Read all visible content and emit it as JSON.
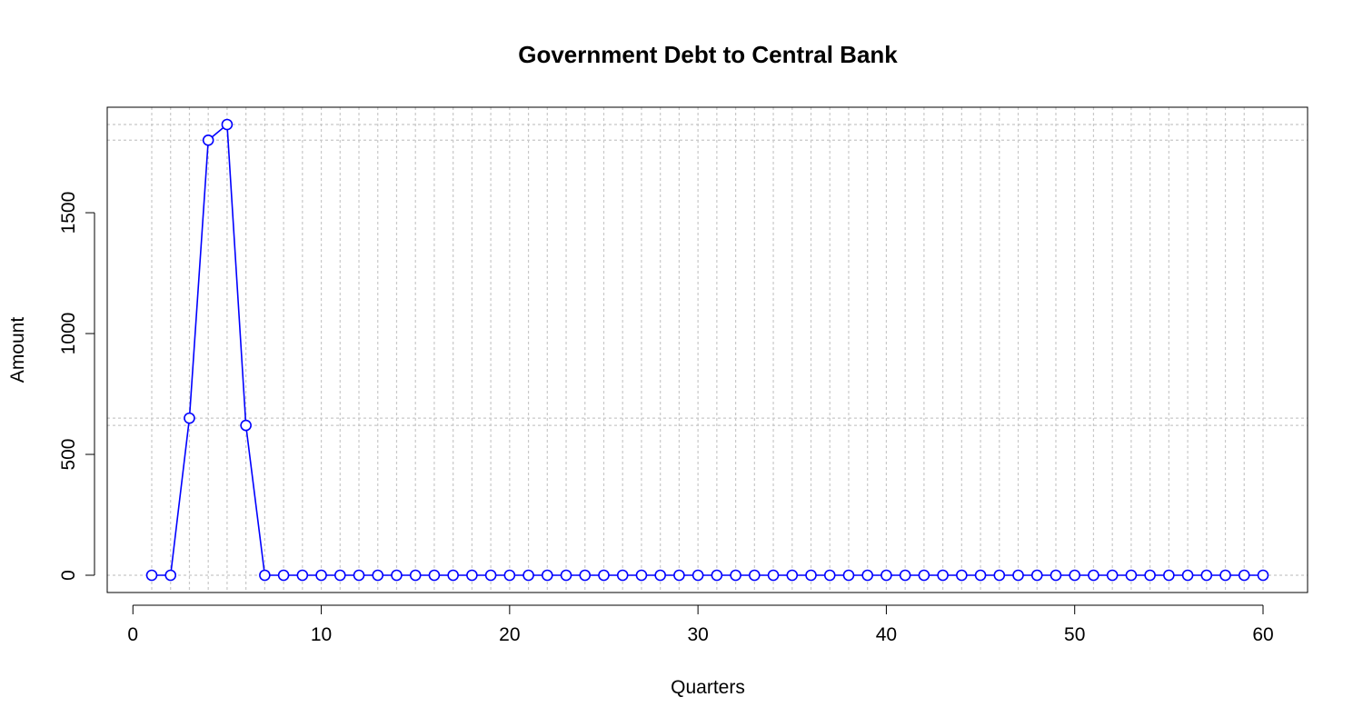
{
  "chart_data": {
    "type": "line",
    "title": "Government Debt to Central Bank",
    "xlabel": "Quarters",
    "ylabel": "Amount",
    "xlim": [
      1,
      60
    ],
    "ylim": [
      0,
      1865
    ],
    "x_ticks": [
      0,
      10,
      20,
      30,
      40,
      50,
      60
    ],
    "y_ticks": [
      0,
      500,
      1000,
      1500
    ],
    "x_tick_labels": [
      "0",
      "10",
      "20",
      "30",
      "40",
      "50",
      "60"
    ],
    "y_tick_labels": [
      "0",
      "500",
      "1000",
      "1500"
    ],
    "grid": true,
    "marker": "open-circle",
    "line_color": "#0000ff",
    "grid_color": "#c8c8c8",
    "y_reference_lines": [
      0,
      620,
      650,
      1800,
      1865
    ],
    "x": [
      1,
      2,
      3,
      4,
      5,
      6,
      7,
      8,
      9,
      10,
      11,
      12,
      13,
      14,
      15,
      16,
      17,
      18,
      19,
      20,
      21,
      22,
      23,
      24,
      25,
      26,
      27,
      28,
      29,
      30,
      31,
      32,
      33,
      34,
      35,
      36,
      37,
      38,
      39,
      40,
      41,
      42,
      43,
      44,
      45,
      46,
      47,
      48,
      49,
      50,
      51,
      52,
      53,
      54,
      55,
      56,
      57,
      58,
      59,
      60
    ],
    "y": [
      0,
      0,
      650,
      1800,
      1865,
      620,
      0,
      0,
      0,
      0,
      0,
      0,
      0,
      0,
      0,
      0,
      0,
      0,
      0,
      0,
      0,
      0,
      0,
      0,
      0,
      0,
      0,
      0,
      0,
      0,
      0,
      0,
      0,
      0,
      0,
      0,
      0,
      0,
      0,
      0,
      0,
      0,
      0,
      0,
      0,
      0,
      0,
      0,
      0,
      0,
      0,
      0,
      0,
      0,
      0,
      0,
      0,
      0,
      0,
      0
    ]
  }
}
